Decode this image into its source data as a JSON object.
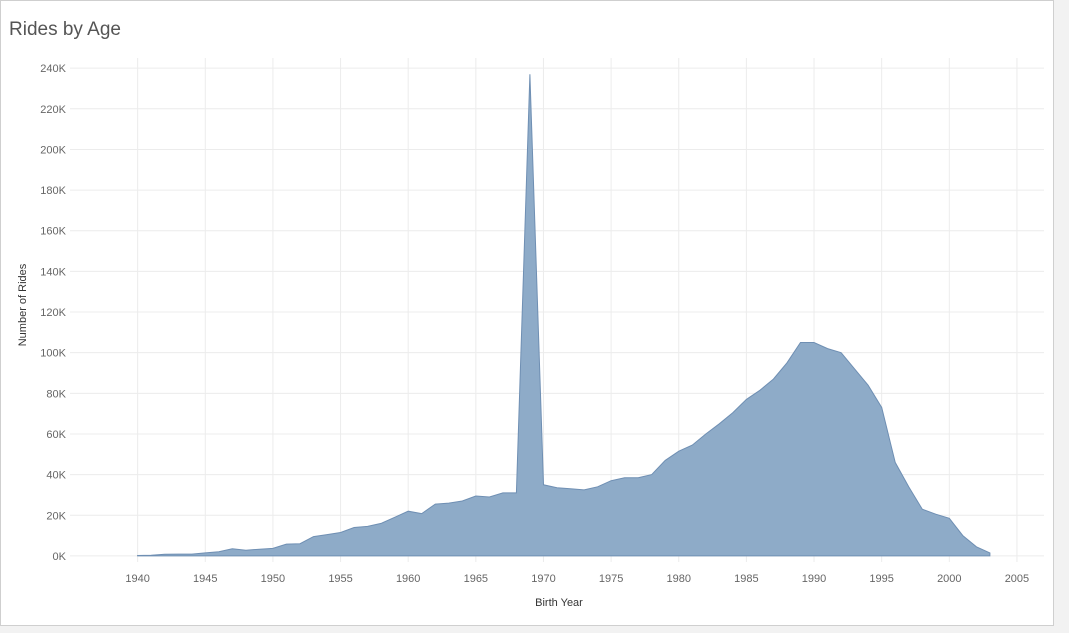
{
  "chart_data": {
    "type": "area",
    "title": "Rides by Age",
    "xlabel": "Birth Year",
    "ylabel": "Number of Rides",
    "xlim": [
      1935,
      2007
    ],
    "ylim": [
      -3000,
      245000
    ],
    "grid": true,
    "legend": "none",
    "color": "#8eabc8",
    "line_color": "#6f8fb3",
    "x_ticks": [
      1940,
      1945,
      1950,
      1955,
      1960,
      1965,
      1970,
      1975,
      1980,
      1985,
      1990,
      1995,
      2000,
      2005
    ],
    "x_tick_labels": [
      "1940",
      "1945",
      "1950",
      "1955",
      "1960",
      "1965",
      "1970",
      "1975",
      "1980",
      "1985",
      "1990",
      "1995",
      "2000",
      "2005"
    ],
    "y_ticks": [
      0,
      20000,
      40000,
      60000,
      80000,
      100000,
      120000,
      140000,
      160000,
      180000,
      200000,
      220000,
      240000
    ],
    "y_tick_labels": [
      "0K",
      "20K",
      "40K",
      "60K",
      "80K",
      "100K",
      "120K",
      "140K",
      "160K",
      "180K",
      "200K",
      "220K",
      "240K"
    ],
    "x": [
      1940,
      1941,
      1942,
      1943,
      1944,
      1945,
      1946,
      1947,
      1948,
      1949,
      1950,
      1951,
      1952,
      1953,
      1954,
      1955,
      1956,
      1957,
      1958,
      1959,
      1960,
      1961,
      1962,
      1963,
      1964,
      1965,
      1966,
      1967,
      1968,
      1969,
      1970,
      1971,
      1972,
      1973,
      1974,
      1975,
      1976,
      1977,
      1978,
      1979,
      1980,
      1981,
      1982,
      1983,
      1984,
      1985,
      1986,
      1987,
      1988,
      1989,
      1990,
      1991,
      1992,
      1993,
      1994,
      1995,
      1996,
      1997,
      1998,
      1999,
      2000,
      2001,
      2002,
      2003
    ],
    "values": [
      200,
      300,
      800,
      900,
      900,
      1500,
      2000,
      3500,
      2800,
      3300,
      3700,
      5800,
      6000,
      9500,
      10500,
      11500,
      14000,
      14500,
      16000,
      19000,
      22000,
      20800,
      25500,
      26000,
      27000,
      29500,
      29000,
      31000,
      31000,
      237000,
      35000,
      33500,
      33000,
      32500,
      34000,
      37000,
      38500,
      38500,
      40000,
      47000,
      51500,
      54500,
      60000,
      65000,
      70500,
      77000,
      81500,
      87000,
      95000,
      105000,
      105000,
      102000,
      100000,
      92000,
      84000,
      73000,
      46000,
      34000,
      23000,
      20500,
      18500,
      10000,
      4500,
      1500
    ]
  }
}
